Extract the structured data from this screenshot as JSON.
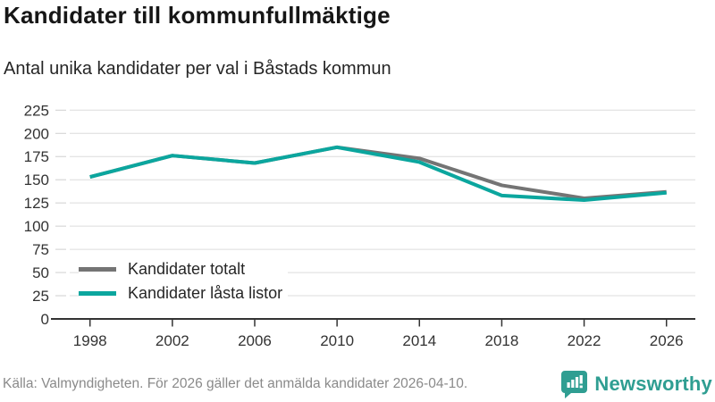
{
  "header": {
    "title": "Kandidater till kommunfullmäktige",
    "subtitle": "Antal unika kandidater per val i Båstads kommun"
  },
  "footer": {
    "source": "Källa: Valmyndigheten. För 2026 gäller det anmälda kandidater 2026-04-10.",
    "brand": "Newsworthy",
    "logo_icon": "bar-chart-speech-bubble-icon"
  },
  "colors": {
    "total_line": "#747474",
    "locked_line": "#0ba69e",
    "gridline": "#dcdcdc",
    "axis": "#333333",
    "tick_label": "#333333",
    "title": "#161616",
    "subtitle": "#262626",
    "source_text": "#8a8a8a",
    "brand_teal": "#2f9e92"
  },
  "chart_data": {
    "type": "line",
    "x": [
      1998,
      2002,
      2006,
      2010,
      2014,
      2018,
      2022,
      2026
    ],
    "series": [
      {
        "name": "Kandidater totalt",
        "color": "#747474",
        "values": [
          153,
          176,
          168,
          185,
          173,
          144,
          130,
          137
        ]
      },
      {
        "name": "Kandidater låsta listor",
        "color": "#0ba69e",
        "values": [
          153,
          176,
          168,
          185,
          169,
          133,
          128,
          136
        ]
      }
    ],
    "title": "Kandidater till kommunfullmäktige",
    "subtitle": "Antal unika kandidater per val i Båstads kommun",
    "xlabel": "",
    "ylabel": "",
    "ylim": [
      0,
      225
    ],
    "yticks": [
      0,
      25,
      50,
      75,
      100,
      125,
      150,
      175,
      200,
      225
    ],
    "grid": "horizontal",
    "legend_position": "inside-bottom-left"
  }
}
